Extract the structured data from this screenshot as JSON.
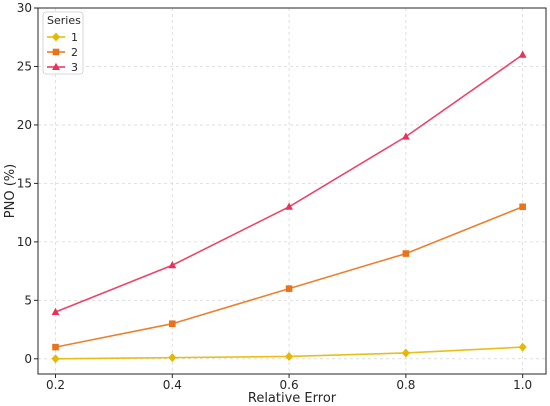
{
  "chart_data": {
    "type": "line",
    "title": "",
    "xlabel": "Relative Error",
    "ylabel": "PNO (%)",
    "x": [
      0.2,
      0.4,
      0.6,
      0.8,
      1.0
    ],
    "x_ticks": [
      "0.2",
      "0.4",
      "0.6",
      "0.8",
      "1.0"
    ],
    "y_ticks": [
      "0",
      "5",
      "10",
      "15",
      "20",
      "25",
      "30"
    ],
    "xlim": [
      0.17,
      1.04
    ],
    "ylim": [
      -1.3,
      30
    ],
    "grid": true,
    "legend": {
      "title": "Series",
      "placement": "top-left"
    },
    "series": [
      {
        "name": "1",
        "values": [
          0.0,
          0.1,
          0.2,
          0.5,
          1.0
        ],
        "color": "#e6b800",
        "marker": "diamond"
      },
      {
        "name": "2",
        "values": [
          1.0,
          3.0,
          6.0,
          9.0,
          13.0
        ],
        "color": "#e8731a",
        "marker": "square"
      },
      {
        "name": "3",
        "values": [
          4.0,
          8.0,
          13.0,
          19.0,
          26.0
        ],
        "color": "#e8325a",
        "marker": "triangle"
      }
    ]
  }
}
